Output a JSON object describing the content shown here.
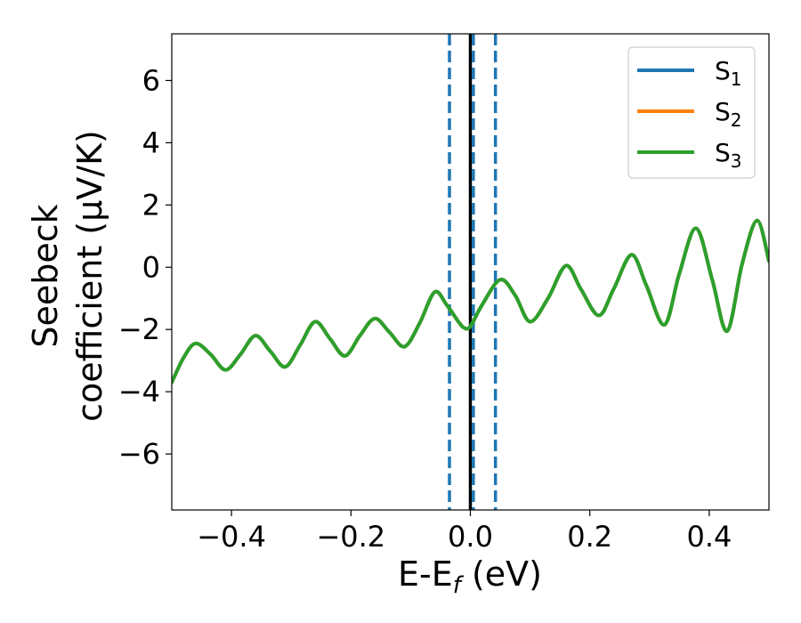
{
  "chart_data": {
    "type": "line",
    "xlabel": "E-E",
    "xlabel_sub": "f",
    "xlabel_suffix": " (eV)",
    "ylabel_line1": "Seebeck",
    "ylabel_line2": "coefficient  (μV/K)",
    "xlim": [
      -0.5,
      0.5
    ],
    "ylim": [
      -7.8,
      7.5
    ],
    "xticks": [
      -0.4,
      -0.2,
      0.0,
      0.2,
      0.4
    ],
    "xtick_labels": [
      "−0.4",
      "−0.2",
      "0.0",
      "0.2",
      "0.4"
    ],
    "yticks": [
      -6,
      -4,
      -2,
      0,
      2,
      4,
      6
    ],
    "ytick_labels": [
      "−6",
      "−4",
      "−2",
      "0",
      "2",
      "4",
      "6"
    ],
    "grid": false,
    "legend_position": "top-right",
    "vlines": [
      {
        "x": 0.0,
        "style": "solid",
        "color": "#000000"
      },
      {
        "x": -0.035,
        "style": "dashed",
        "color": "#1f77b4"
      },
      {
        "x": 0.005,
        "style": "dashed",
        "color": "#1f77b4"
      },
      {
        "x": 0.042,
        "style": "dashed",
        "color": "#1f77b4"
      }
    ],
    "series": [
      {
        "name": "S",
        "sub": "1",
        "color": "#1f77b4",
        "x": [
          -0.5,
          -0.48,
          -0.46,
          -0.435,
          -0.41,
          -0.385,
          -0.36,
          -0.335,
          -0.31,
          -0.285,
          -0.26,
          -0.235,
          -0.21,
          -0.185,
          -0.16,
          -0.135,
          -0.11,
          -0.085,
          -0.06,
          -0.04,
          -0.02,
          -0.01,
          0.0,
          0.02,
          0.05,
          0.075,
          0.1,
          0.13,
          0.16,
          0.185,
          0.215,
          0.24,
          0.27,
          0.295,
          0.325,
          0.35,
          0.378,
          0.405,
          0.43,
          0.455,
          0.48,
          0.5
        ],
        "y": [
          -3.7,
          -2.9,
          -2.45,
          -2.8,
          -3.3,
          -2.8,
          -2.2,
          -2.7,
          -3.2,
          -2.5,
          -1.75,
          -2.3,
          -2.85,
          -2.2,
          -1.65,
          -2.1,
          -2.55,
          -1.8,
          -0.8,
          -1.2,
          -1.75,
          -1.95,
          -1.9,
          -1.2,
          -0.4,
          -0.9,
          -1.75,
          -1.0,
          0.05,
          -0.7,
          -1.55,
          -0.7,
          0.4,
          -0.6,
          -1.85,
          -0.2,
          1.25,
          -0.4,
          -2.05,
          0.1,
          1.5,
          0.2
        ]
      },
      {
        "name": "S",
        "sub": "2",
        "color": "#ff7f0e",
        "x": [
          -0.5,
          -0.48,
          -0.46,
          -0.435,
          -0.41,
          -0.385,
          -0.36,
          -0.335,
          -0.31,
          -0.285,
          -0.26,
          -0.235,
          -0.21,
          -0.185,
          -0.16,
          -0.135,
          -0.11,
          -0.085,
          -0.06,
          -0.04,
          -0.02,
          -0.01,
          0.0,
          0.02,
          0.05,
          0.075,
          0.1,
          0.13,
          0.16,
          0.185,
          0.215,
          0.24,
          0.27,
          0.295,
          0.325,
          0.35,
          0.378,
          0.405,
          0.43,
          0.455,
          0.48,
          0.5
        ],
        "y": [
          -3.7,
          -2.9,
          -2.45,
          -2.8,
          -3.3,
          -2.8,
          -2.2,
          -2.7,
          -3.2,
          -2.5,
          -1.75,
          -2.3,
          -2.85,
          -2.2,
          -1.65,
          -2.1,
          -2.55,
          -1.8,
          -0.8,
          -1.2,
          -1.75,
          -1.95,
          -1.9,
          -1.2,
          -0.4,
          -0.9,
          -1.75,
          -1.0,
          0.05,
          -0.7,
          -1.55,
          -0.7,
          0.4,
          -0.6,
          -1.85,
          -0.2,
          1.25,
          -0.4,
          -2.05,
          0.1,
          1.5,
          0.2
        ]
      },
      {
        "name": "S",
        "sub": "3",
        "color": "#2ca02c",
        "x": [
          -0.5,
          -0.48,
          -0.46,
          -0.435,
          -0.41,
          -0.385,
          -0.36,
          -0.335,
          -0.31,
          -0.285,
          -0.26,
          -0.235,
          -0.21,
          -0.185,
          -0.16,
          -0.135,
          -0.11,
          -0.085,
          -0.06,
          -0.04,
          -0.02,
          -0.01,
          0.0,
          0.02,
          0.05,
          0.075,
          0.1,
          0.13,
          0.16,
          0.185,
          0.215,
          0.24,
          0.27,
          0.295,
          0.325,
          0.35,
          0.378,
          0.405,
          0.43,
          0.455,
          0.48,
          0.5
        ],
        "y": [
          -3.7,
          -2.9,
          -2.45,
          -2.8,
          -3.3,
          -2.8,
          -2.2,
          -2.7,
          -3.2,
          -2.5,
          -1.75,
          -2.3,
          -2.85,
          -2.2,
          -1.65,
          -2.1,
          -2.55,
          -1.8,
          -0.8,
          -1.2,
          -1.75,
          -1.95,
          -1.9,
          -1.2,
          -0.4,
          -0.9,
          -1.75,
          -1.0,
          0.05,
          -0.7,
          -1.55,
          -0.7,
          0.4,
          -0.6,
          -1.85,
          -0.2,
          1.25,
          -0.4,
          -2.05,
          0.1,
          1.5,
          0.2
        ]
      }
    ]
  }
}
